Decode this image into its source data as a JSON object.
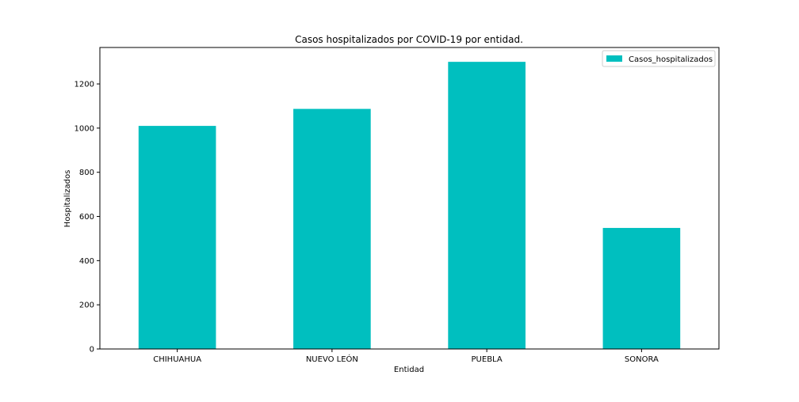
{
  "chart_data": {
    "type": "bar",
    "title": "Casos hospitalizados por COVID-19 por entidad.",
    "xlabel": "Entidad",
    "ylabel": "Hospitalizados",
    "categories": [
      "CHIHUAHUA",
      "NUEVO LEÓN",
      "PUEBLA",
      "SONORA"
    ],
    "series": [
      {
        "name": "Casos_hospitalizados",
        "values": [
          1010,
          1087,
          1300,
          548
        ],
        "color": "#00bfbf"
      }
    ],
    "ylim": [
      0,
      1365
    ],
    "yticks": [
      0,
      200,
      400,
      600,
      800,
      1000,
      1200
    ],
    "grid": false,
    "legend_position": "top-right"
  }
}
